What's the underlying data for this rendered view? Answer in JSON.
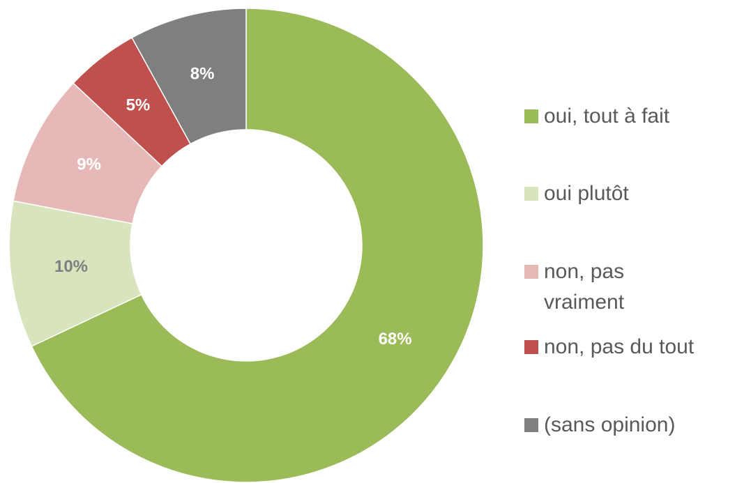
{
  "chart_data": {
    "type": "donut",
    "categories": [
      "oui, tout à fait",
      "oui plutôt",
      "non, pas vraiment",
      "non, pas du tout",
      "(sans opinion)"
    ],
    "values": [
      68,
      10,
      9,
      5,
      8
    ],
    "value_labels": [
      "68%",
      "10%",
      "9%",
      "5%",
      "8%"
    ],
    "colors": [
      "#9bbb59",
      "#d7e4bd",
      "#e6b9b8",
      "#c0504d",
      "#7f7f7f"
    ],
    "value_label_colors": [
      "#ffffff",
      "#7f7f7f",
      "#ffffff",
      "#ffffff",
      "#ffffff"
    ]
  }
}
